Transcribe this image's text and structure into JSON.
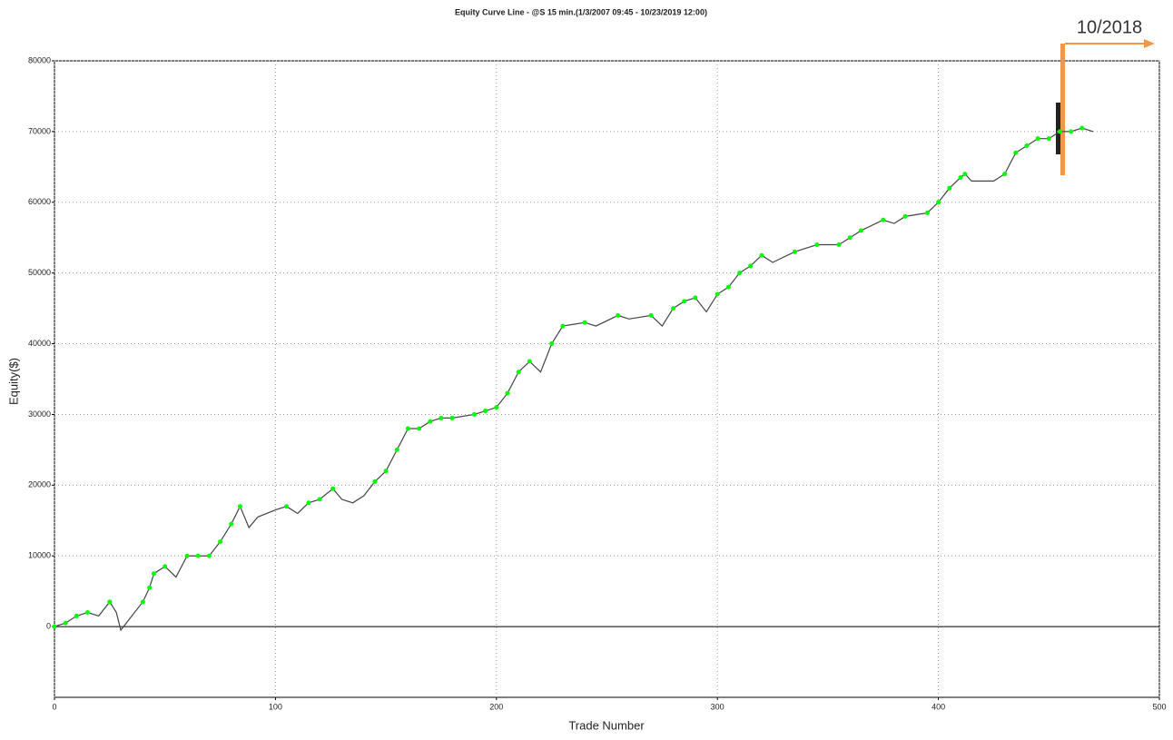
{
  "chart_data": {
    "type": "line",
    "title": "Equity Curve Line - @S 15 min.(1/3/2007 09:45 - 10/23/2019 12:00)",
    "x_label": "Trade Number",
    "y_label": "Equity($)",
    "annotation": "10/2018",
    "x": [
      0,
      5,
      10,
      15,
      20,
      25,
      28,
      30,
      35,
      40,
      43,
      45,
      50,
      55,
      60,
      65,
      70,
      75,
      80,
      84,
      88,
      92,
      100,
      105,
      110,
      115,
      120,
      126,
      130,
      135,
      140,
      145,
      150,
      155,
      160,
      165,
      170,
      175,
      180,
      190,
      195,
      200,
      205,
      210,
      215,
      220,
      225,
      230,
      240,
      245,
      255,
      260,
      270,
      275,
      280,
      285,
      290,
      295,
      300,
      305,
      310,
      315,
      320,
      325,
      335,
      345,
      355,
      360,
      365,
      375,
      380,
      385,
      395,
      400,
      405,
      410,
      412,
      415,
      420,
      425,
      430,
      435,
      440,
      445,
      450,
      455,
      460,
      465,
      470
    ],
    "series": [
      {
        "name": "Equity",
        "color": "#444444",
        "values": [
          0,
          500,
          1500,
          2000,
          1500,
          3500,
          2000,
          -500,
          1500,
          3500,
          5500,
          7500,
          8500,
          7000,
          10000,
          10000,
          10000,
          12000,
          14500,
          17000,
          14000,
          15500,
          16500,
          17000,
          16000,
          17500,
          18000,
          19500,
          18000,
          17500,
          18500,
          20500,
          22000,
          25000,
          28000,
          28000,
          29000,
          29500,
          29500,
          30000,
          30500,
          31000,
          33000,
          36000,
          37500,
          36000,
          40000,
          42500,
          43000,
          42500,
          44000,
          43500,
          44000,
          42500,
          45000,
          46000,
          46500,
          44500,
          47000,
          48000,
          50000,
          51000,
          52500,
          51500,
          53000,
          54000,
          54000,
          55000,
          56000,
          57500,
          57000,
          58000,
          58500,
          60000,
          62000,
          63500,
          64000,
          63000,
          63000,
          63000,
          64000,
          67000,
          68000,
          69000,
          69000,
          70000,
          70000,
          70500,
          70000
        ]
      }
    ],
    "marker_color": "#00ff00",
    "xlim": [
      0,
      500
    ],
    "xticks": [
      0,
      100,
      200,
      300,
      400,
      500
    ],
    "ylim": [
      -10000,
      80000
    ],
    "yticks": [
      0,
      10000,
      20000,
      30000,
      40000,
      50000,
      60000,
      70000,
      80000
    ],
    "grid": true
  }
}
